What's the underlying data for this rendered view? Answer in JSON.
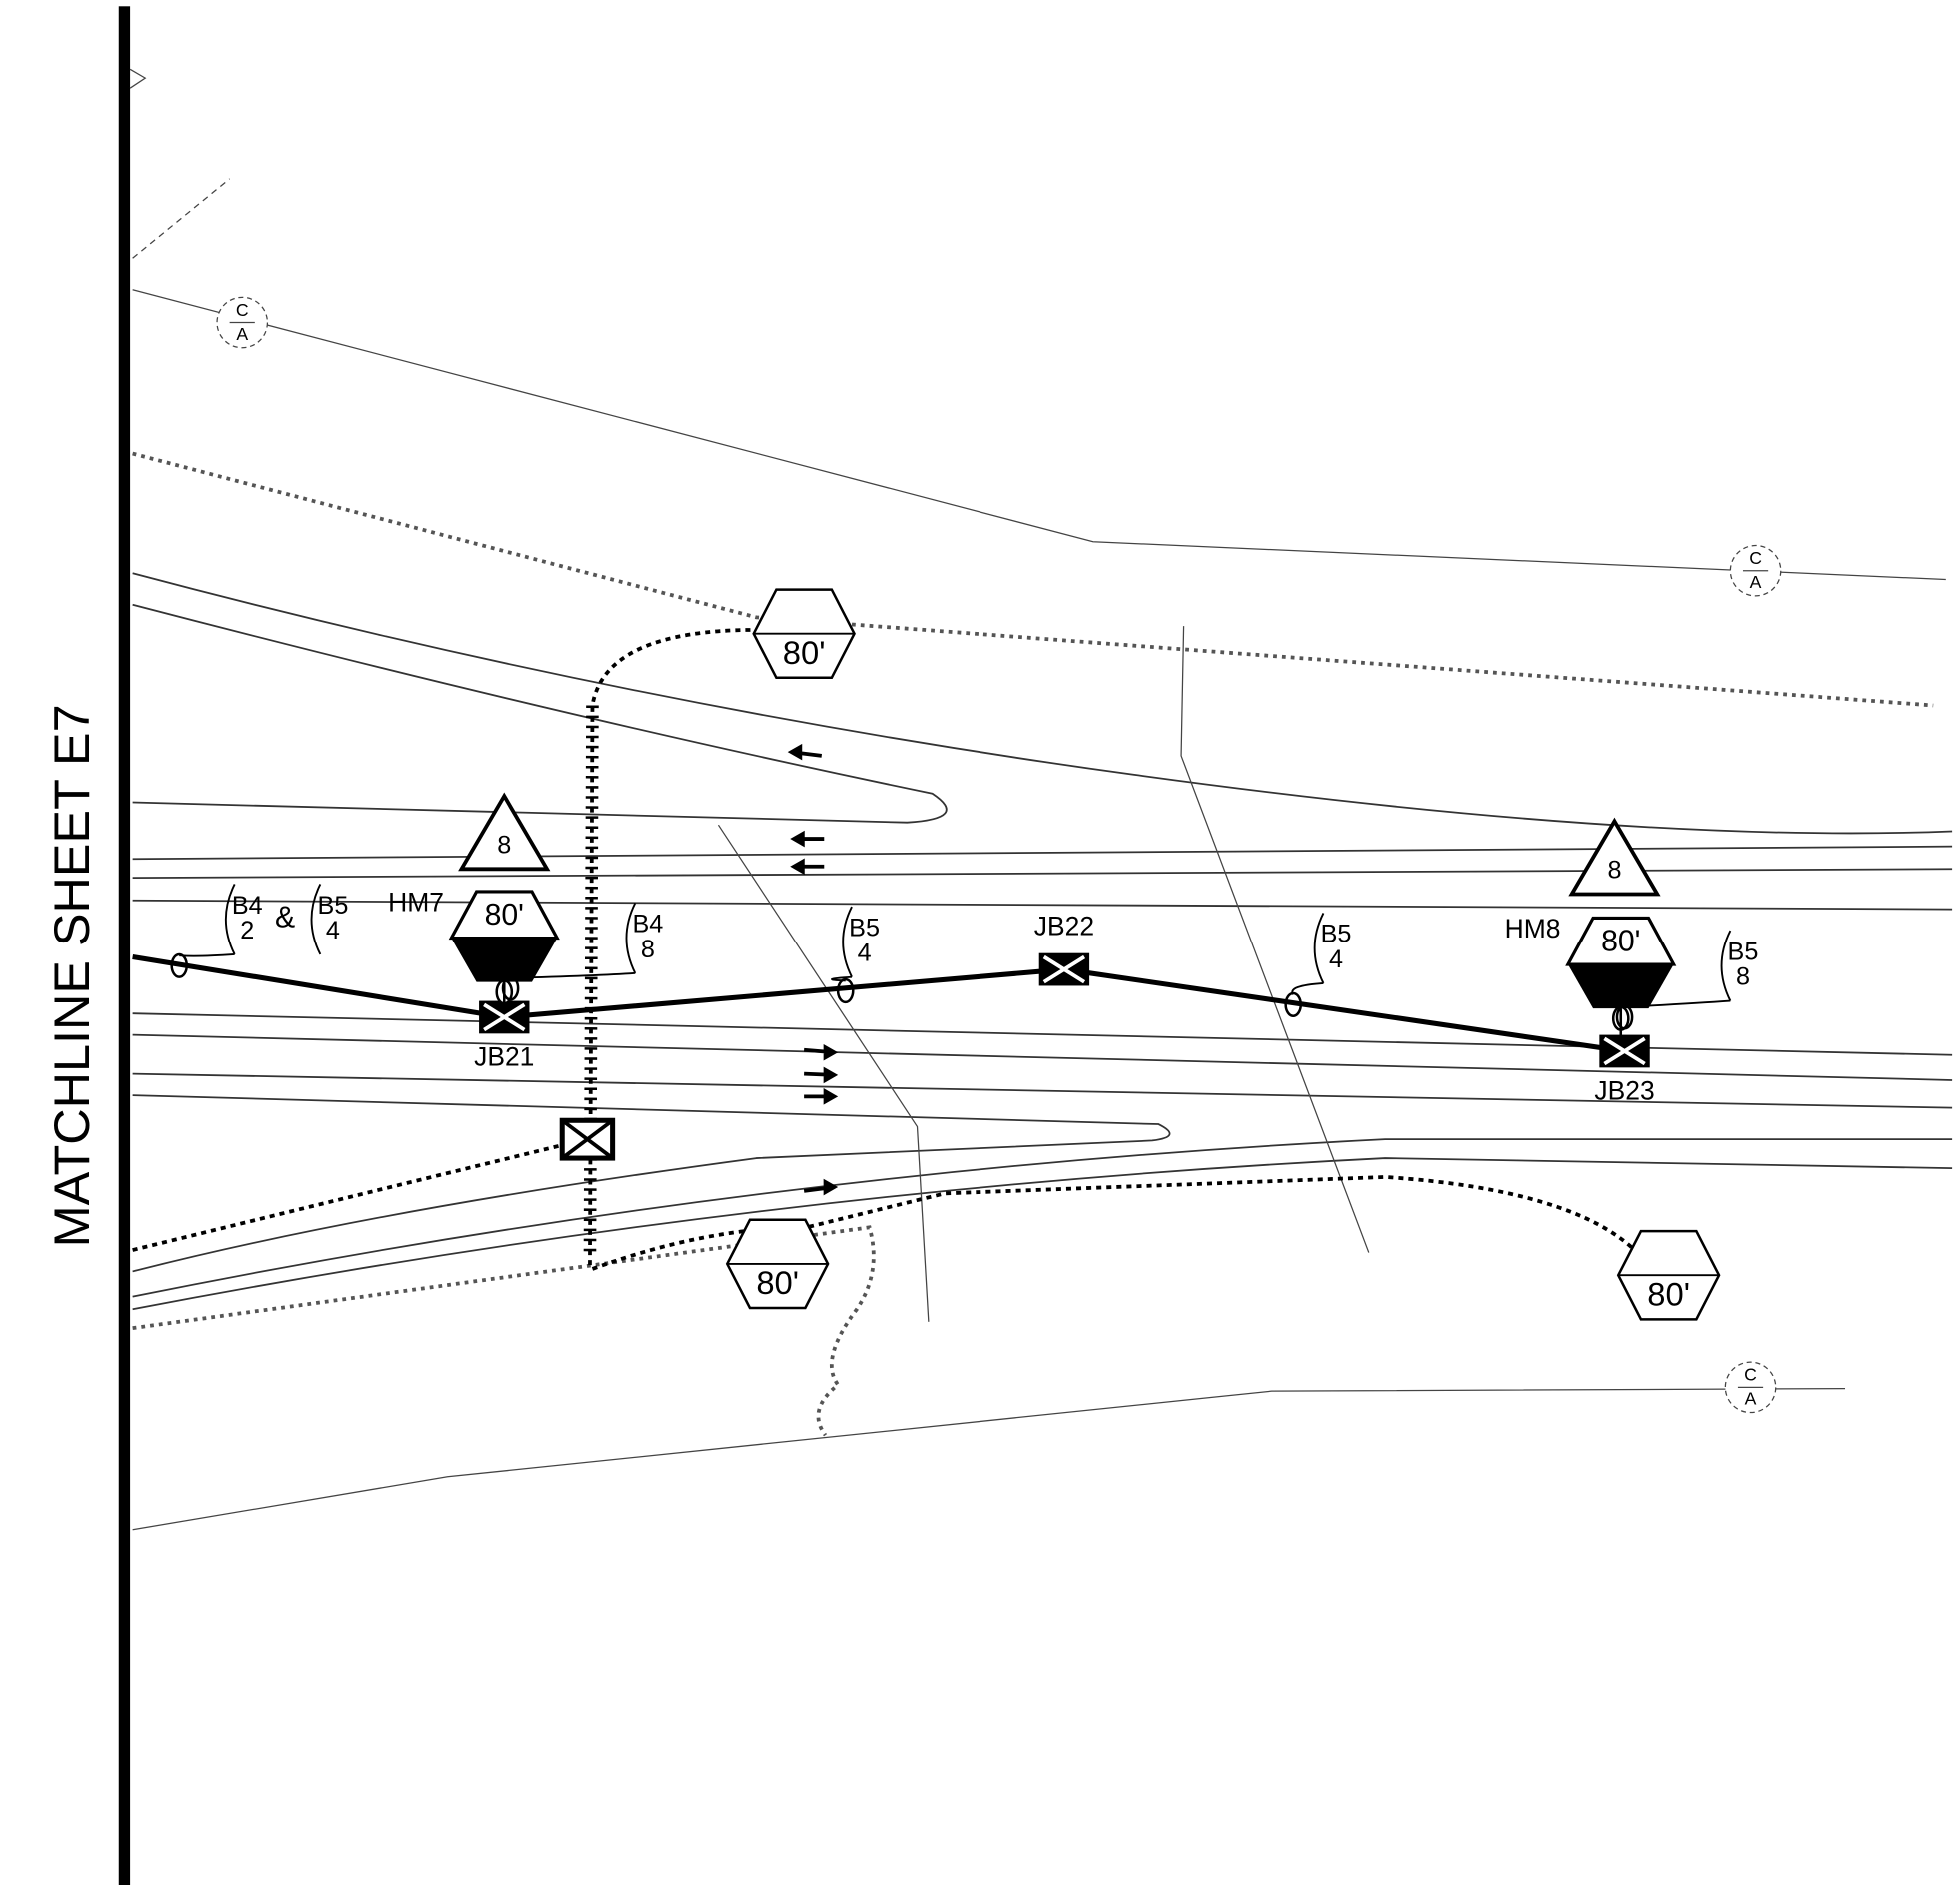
{
  "drawing": {
    "matchline": "MATCHLINE SHEET E7",
    "junction_boxes": [
      {
        "label": "JB21"
      },
      {
        "label": "JB22"
      },
      {
        "label": "JB23"
      }
    ],
    "luminaires": [
      {
        "label": "HM7",
        "height": "80'"
      },
      {
        "label": "HM8",
        "height": "80'"
      }
    ],
    "circuit_tags": [
      {
        "circuit": "B4",
        "number": "2"
      },
      {
        "circuit": "B5",
        "number": "4"
      },
      {
        "circuit": "B4",
        "number": "8"
      },
      {
        "circuit": "B5",
        "number": "4"
      },
      {
        "circuit": "B5",
        "number": "4"
      },
      {
        "circuit": "B5",
        "number": "8"
      }
    ],
    "tag_joiner": "&",
    "detail_triangles": [
      "8",
      "8"
    ],
    "foundation_hexagons": [
      "80'",
      "80'",
      "80'"
    ],
    "centerline_markers": [
      {
        "top": "C",
        "bottom": "A"
      },
      {
        "top": "C",
        "bottom": "A"
      },
      {
        "top": "C",
        "bottom": "A"
      }
    ]
  }
}
